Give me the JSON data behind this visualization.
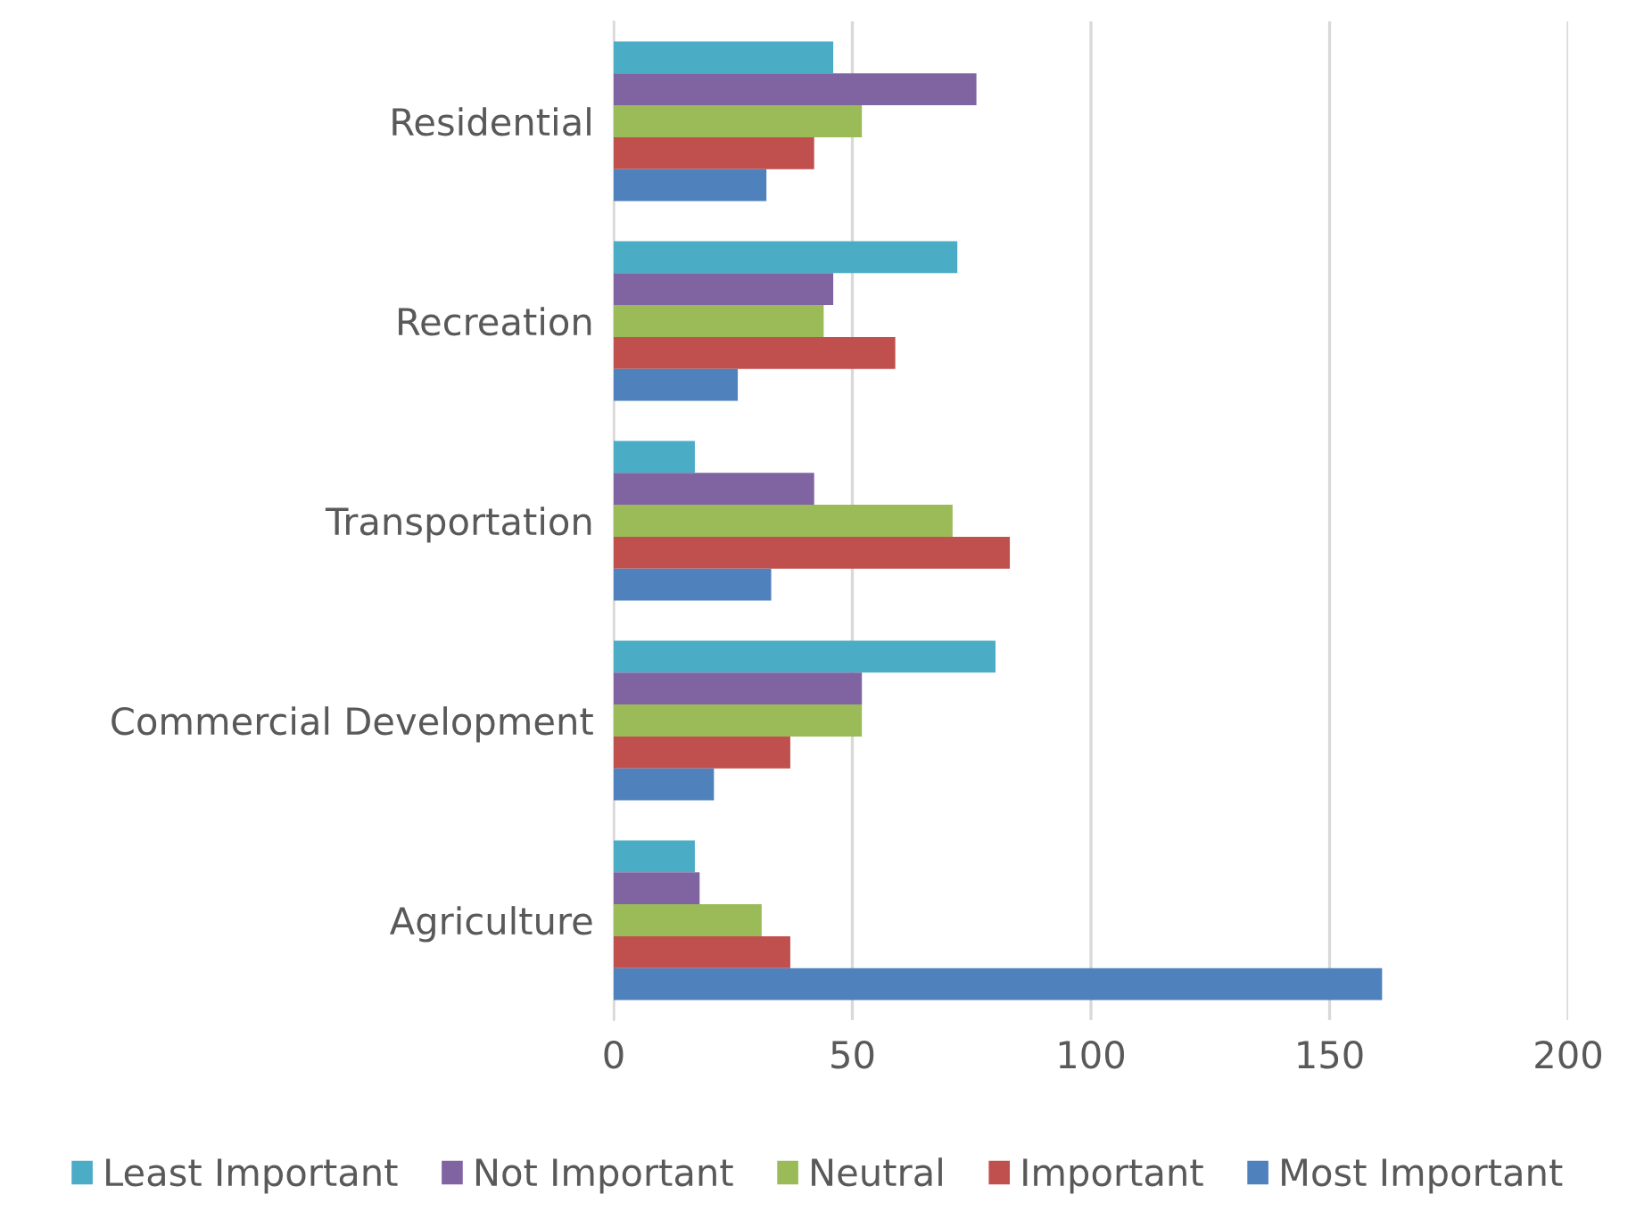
{
  "chart_data": {
    "type": "bar",
    "orientation": "horizontal",
    "categories": [
      "Residential",
      "Recreation",
      "Transportation",
      "Commercial Development",
      "Agriculture"
    ],
    "series": [
      {
        "name": "Least Important",
        "color": "#4bacc6",
        "values": [
          46,
          72,
          17,
          80,
          17
        ]
      },
      {
        "name": "Not Important",
        "color": "#8064a2",
        "values": [
          76,
          46,
          42,
          52,
          18
        ]
      },
      {
        "name": "Neutral",
        "color": "#9bbb59",
        "values": [
          52,
          44,
          71,
          52,
          31
        ]
      },
      {
        "name": "Important",
        "color": "#c0504d",
        "values": [
          42,
          59,
          83,
          37,
          37
        ]
      },
      {
        "name": "Most Important",
        "color": "#4f81bd",
        "values": [
          32,
          26,
          33,
          21,
          161
        ]
      }
    ],
    "xlim": [
      0,
      200
    ],
    "xticks": [
      0,
      50,
      100,
      150,
      200
    ],
    "grid": "x",
    "legend": "bottom"
  }
}
